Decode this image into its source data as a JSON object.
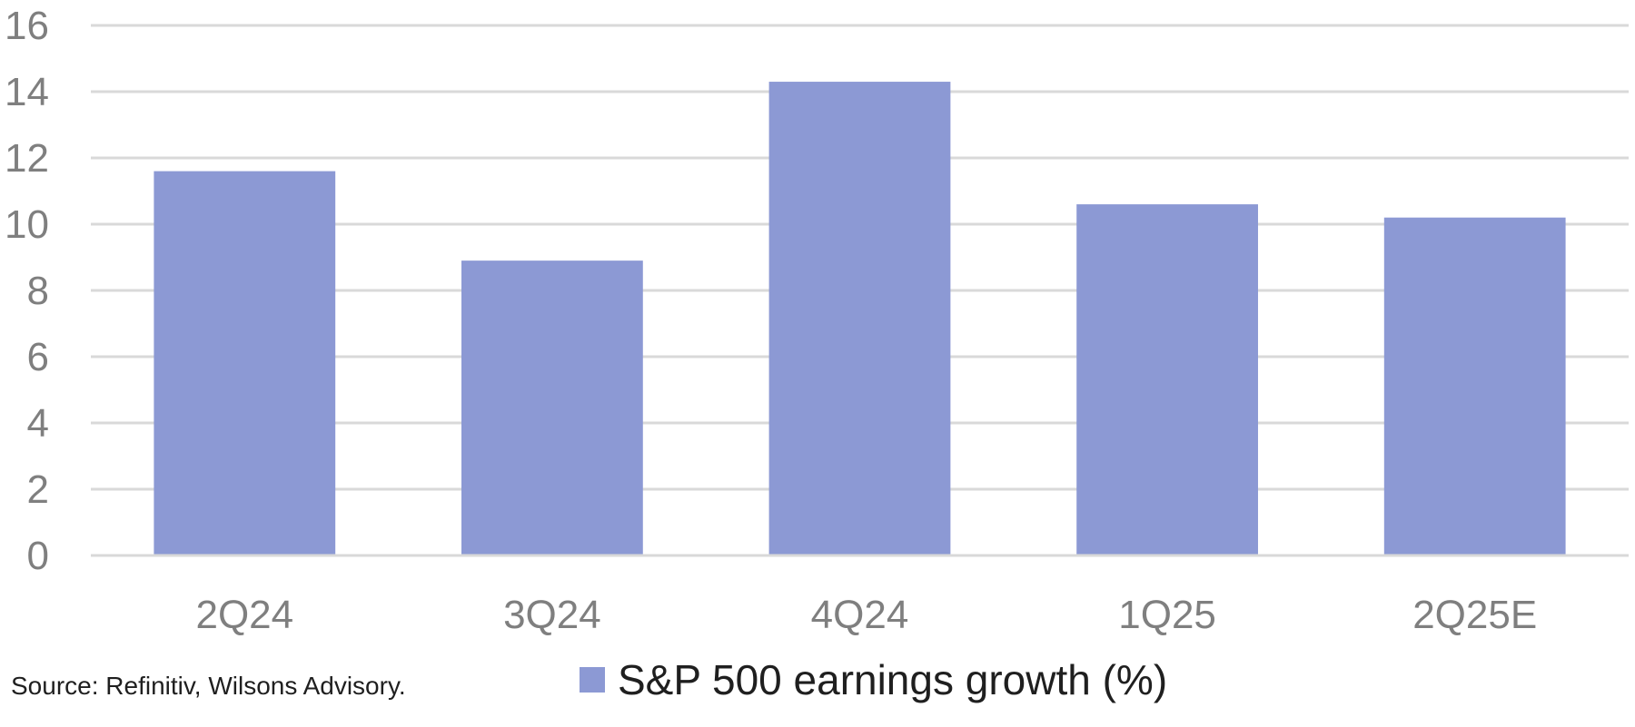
{
  "chart_data": {
    "type": "bar",
    "categories": [
      "2Q24",
      "3Q24",
      "4Q24",
      "1Q25",
      "2Q25E"
    ],
    "series": [
      {
        "name": "S&P 500 earnings growth (%)",
        "values": [
          11.6,
          8.9,
          14.3,
          10.6,
          10.2
        ]
      }
    ],
    "ylim": [
      0,
      16
    ],
    "yticks": [
      "0",
      "2",
      "4",
      "6",
      "8",
      "10",
      "12",
      "14",
      "16"
    ],
    "grid": true,
    "legend_position": "bottom",
    "colors": {
      "bar": "#8c99d4",
      "grid": "#d9d9d9",
      "tick": "#7f7f7f"
    }
  },
  "source": "Source: Refinitiv, Wilsons Advisory."
}
